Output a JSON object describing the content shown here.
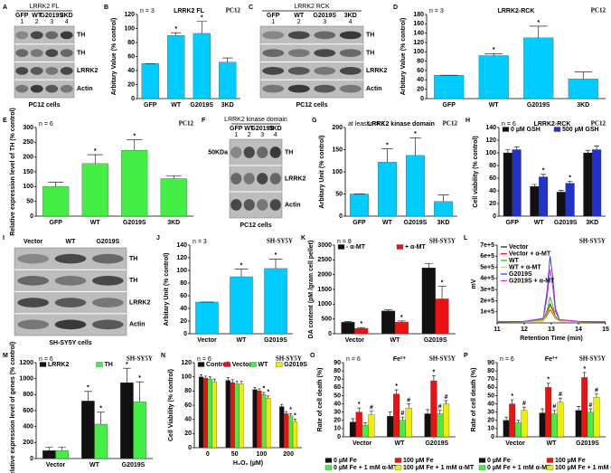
{
  "panels": [
    {
      "letter": "A",
      "blot": {
        "title": "LRRK2 FL",
        "lanes": [
          "GFP",
          "WT",
          "G2019S",
          "3KD"
        ],
        "lane_numbers": [
          "1",
          "2",
          "3",
          "4"
        ],
        "rows": [
          "TH",
          "TH",
          "LRRK2",
          "Actin"
        ],
        "caption": "PC12 cells"
      }
    },
    {
      "letter": "B",
      "chart_data": {
        "type": "bar",
        "title": "LRRK2 FL",
        "n_label": "n = 3",
        "cell_line": "PC12",
        "y_label": "Arbitary Value (% control)",
        "categories": [
          "GFP",
          "WT",
          "G2019S",
          "3KD"
        ],
        "series": [
          {
            "color": "#00ccff",
            "values": [
              50,
              90,
              93,
              52
            ],
            "errors": [
              0,
              4,
              17,
              6
            ],
            "marks": [
              null,
              "*",
              "*",
              null
            ]
          }
        ],
        "ylim": [
          0,
          120
        ],
        "yticks": [
          0,
          20,
          40,
          60,
          80,
          100,
          120
        ]
      }
    },
    {
      "letter": "C",
      "blot": {
        "title": "LRRK2 RCK",
        "lanes": [
          "GFP",
          "WT",
          "G2019S",
          "3KD"
        ],
        "lane_numbers": [
          "1",
          "2",
          "3",
          "4"
        ],
        "rows": [
          "TH",
          "TH",
          "LRRK2",
          "Actin"
        ],
        "caption": "PC12 cells"
      }
    },
    {
      "letter": "D",
      "chart_data": {
        "type": "bar",
        "title": "LRRK2-RCK",
        "n_label": "n = 3",
        "cell_line": "PC12",
        "y_label": "Arbitary Value (% control)",
        "categories": [
          "GFP",
          "WT",
          "G2019S",
          "3KD"
        ],
        "series": [
          {
            "color": "#00ccff",
            "values": [
              50,
              92,
              130,
              42
            ],
            "errors": [
              0,
              4,
              25,
              15
            ],
            "marks": [
              null,
              "*",
              "*",
              null
            ]
          }
        ],
        "ylim": [
          0,
          180
        ],
        "yticks": [
          0,
          20,
          40,
          60,
          80,
          100,
          120,
          140,
          160,
          180
        ]
      }
    },
    {
      "letter": "E",
      "chart_data": {
        "type": "bar",
        "n_label": "n = 6",
        "cell_line": "PC12",
        "y_label": "Relative expression level of TH (% control)",
        "categories": [
          "GFP",
          "WT",
          "G2019S",
          "3KD"
        ],
        "series": [
          {
            "color": "#44ee44",
            "values": [
              100,
              178,
              223,
              127
            ],
            "errors": [
              15,
              30,
              35,
              10
            ],
            "marks": [
              null,
              "*",
              "*",
              null
            ]
          }
        ],
        "ylim": [
          0,
          300
        ],
        "yticks": [
          0,
          50,
          100,
          150,
          200,
          250,
          300
        ]
      }
    },
    {
      "letter": "F",
      "blot": {
        "title": "LRRK2 kinase domain",
        "lanes": [
          "GFP",
          "WT",
          "G2019S",
          "3KD"
        ],
        "lane_numbers": [
          "1",
          "2",
          "3",
          "4"
        ],
        "rows": [
          "TH",
          "LRRK2",
          "Actin"
        ],
        "marker": "50KDa",
        "caption": "PC12 cells"
      }
    },
    {
      "letter": "G",
      "chart_data": {
        "type": "bar",
        "title": "LRRK2 kinase domain",
        "n_label": "at least n = 3",
        "cell_line": "PC12",
        "y_label": "Arbitary Unit (% control)",
        "categories": [
          "GFP",
          "WT",
          "G2019S",
          "3KD"
        ],
        "series": [
          {
            "color": "#00ccff",
            "values": [
              50,
              122,
              137,
              33
            ],
            "errors": [
              0,
              30,
              40,
              15
            ],
            "marks": [
              null,
              "*",
              "*",
              null
            ]
          }
        ],
        "ylim": [
          0,
          200
        ],
        "yticks": [
          0,
          50,
          100,
          150,
          200
        ]
      }
    },
    {
      "letter": "H",
      "chart_data": {
        "type": "bar",
        "title": "LRRK2-RCK",
        "n_label": "n = 6",
        "cell_line": "PC12",
        "y_label": "Cell viability (% control)",
        "categories": [
          "GFP",
          "WT",
          "G2019S",
          "3KD"
        ],
        "legend": "top",
        "series": [
          {
            "name": "0 µM GSH",
            "color": "#111111",
            "values": [
              100,
              47,
              38,
              100
            ],
            "errors": [
              5,
              3,
              3,
              4
            ],
            "marks": [
              null,
              null,
              null,
              null
            ]
          },
          {
            "name": "500 µM GSH",
            "color": "#2233cc",
            "values": [
              105,
              62,
              52,
              105
            ],
            "errors": [
              4,
              4,
              3,
              6
            ],
            "marks": [
              null,
              "*",
              "*",
              null
            ]
          }
        ],
        "ylim": [
          0,
          140
        ],
        "yticks": [
          0,
          20,
          40,
          60,
          80,
          100,
          120,
          140
        ]
      }
    },
    {
      "letter": "I",
      "blot": {
        "lanes": [
          "Vector",
          "WT",
          "G2019S"
        ],
        "rows": [
          "TH",
          "TH",
          "LRRK2",
          "Actin"
        ],
        "caption": "SH-SY5Y cells"
      }
    },
    {
      "letter": "J",
      "chart_data": {
        "type": "bar",
        "n_label": "n = 3",
        "cell_line": "SH-SY5Y",
        "y_label": "Arbitary Unit (% control)",
        "categories": [
          "Vector",
          "WT",
          "G2019S"
        ],
        "series": [
          {
            "color": "#00ccff",
            "values": [
              50,
              90,
              103
            ],
            "errors": [
              0,
              12,
              15
            ],
            "marks": [
              null,
              "*",
              "*"
            ]
          }
        ],
        "ylim": [
          0,
          140
        ],
        "yticks": [
          0,
          20,
          40,
          60,
          80,
          100,
          120,
          140
        ]
      }
    },
    {
      "letter": "K",
      "chart_data": {
        "type": "bar",
        "n_label": "n = 8",
        "cell_line": "SH-SY5Y",
        "y_label": "DA content (pM /gram cell pellet)",
        "categories": [
          "Vector",
          "WT",
          "G2019S"
        ],
        "legend": "top",
        "series": [
          {
            "name": "- α-MT",
            "color": "#111111",
            "values": [
              390,
              770,
              2230
            ],
            "errors": [
              30,
              40,
              150
            ],
            "marks": [
              null,
              null,
              null
            ]
          },
          {
            "name": "+ α-MT",
            "color": "#ee1111",
            "values": [
              180,
              390,
              1180
            ],
            "errors": [
              30,
              40,
              420
            ],
            "marks": [
              "*",
              "*",
              "*"
            ]
          }
        ],
        "ylim": [
          0,
          3000
        ],
        "yticks": [
          0,
          500,
          1000,
          1500,
          2000,
          2500,
          3000
        ]
      }
    },
    {
      "letter": "L",
      "chart_data": {
        "type": "line",
        "cell_line": "SH-SY5Y",
        "y_label": "mV",
        "x_label": "Retention Time (min)",
        "legend": "top-left",
        "x": [
          11,
          12,
          12.7,
          12.85,
          12.95,
          13.05,
          13.15,
          13.3,
          14,
          15
        ],
        "xlim": [
          11,
          15
        ],
        "xticks": [
          11,
          12,
          13,
          14,
          15
        ],
        "ylim": [
          0,
          700000
        ],
        "yticks": [
          {
            "value": 100000,
            "label": "1e+5"
          },
          {
            "value": 200000,
            "label": "2e+5"
          },
          {
            "value": 300000,
            "label": "3e+5"
          },
          {
            "value": 400000,
            "label": "4e+5"
          },
          {
            "value": 500000,
            "label": "5e+5"
          },
          {
            "value": 600000,
            "label": "6e+5"
          },
          {
            "value": 700000,
            "label": "7e+5"
          }
        ],
        "series": [
          {
            "name": "Vector",
            "color": "#111111",
            "values": [
              10000,
              12000,
              20000,
              90000,
              170000,
              120000,
              50000,
              20000,
              12000,
              10000
            ]
          },
          {
            "name": "Vector + α-MT",
            "color": "#ee1111",
            "values": [
              10000,
              11000,
              18000,
              70000,
              120000,
              85000,
              40000,
              18000,
              11000,
              10000
            ]
          },
          {
            "name": "WT",
            "color": "#22bb22",
            "values": [
              10000,
              12000,
              25000,
              120000,
              230000,
              160000,
              60000,
              22000,
              12000,
              10000
            ]
          },
          {
            "name": "WT + α-MT",
            "color": "#dddd00",
            "values": [
              10000,
              11000,
              20000,
              80000,
              150000,
              105000,
              45000,
              20000,
              11000,
              10000
            ]
          },
          {
            "name": "G2019S",
            "color": "#2233ee",
            "values": [
              10000,
              14000,
              40000,
              300000,
              600000,
              420000,
              130000,
              30000,
              14000,
              10000
            ]
          },
          {
            "name": "G2019S + α-MT",
            "color": "#dd22dd",
            "values": [
              10000,
              13000,
              35000,
              240000,
              480000,
              330000,
              100000,
              28000,
              13000,
              10000
            ]
          }
        ]
      }
    },
    {
      "letter": "M",
      "chart_data": {
        "type": "bar",
        "n_label": "n = 6",
        "cell_line": "SH-SY5Y",
        "y_label": "Relative expression level of genes (% control)",
        "categories": [
          "Vector",
          "WT",
          "G2019S"
        ],
        "legend": "top",
        "series": [
          {
            "name": "LRRK2",
            "color": "#111111",
            "values": [
              100,
              720,
              950
            ],
            "errors": [
              40,
              120,
              180
            ],
            "marks": [
              null,
              "*",
              "*"
            ]
          },
          {
            "name": "TH",
            "color": "#44ee44",
            "values": [
              100,
              430,
              710
            ],
            "errors": [
              40,
              150,
              250
            ],
            "marks": [
              null,
              "*",
              "*"
            ]
          }
        ],
        "ylim": [
          0,
          1200
        ],
        "yticks": [
          0,
          200,
          400,
          600,
          800,
          1000,
          1200
        ]
      }
    },
    {
      "letter": "N",
      "chart_data": {
        "type": "bar",
        "n_label": "n = 6",
        "cell_line": "SH-SY5Y",
        "y_label": "Cell Viability (% control)",
        "x_label": "H₂O₂ (µM)",
        "categories": [
          "0",
          "50",
          "100",
          "200"
        ],
        "legend": "top",
        "series": [
          {
            "name": "Control",
            "color": "#111111",
            "values": [
              100,
              95,
              82,
              58
            ],
            "errors": [
              3,
              4,
              3,
              3
            ],
            "marks": [
              null,
              null,
              null,
              null
            ]
          },
          {
            "name": "Vector",
            "color": "#ee1111",
            "values": [
              98,
              92,
              80,
              48
            ],
            "errors": [
              3,
              4,
              3,
              3
            ],
            "marks": [
              null,
              null,
              null,
              null
            ]
          },
          {
            "name": "WT",
            "color": "#44ee44",
            "values": [
              97,
              90,
              75,
              45
            ],
            "errors": [
              3,
              4,
              3,
              3
            ],
            "marks": [
              null,
              null,
              "*",
              "*"
            ]
          },
          {
            "name": "G2019S",
            "color": "#eeee00",
            "values": [
              93,
              90,
              70,
              37
            ],
            "errors": [
              4,
              4,
              3,
              3
            ],
            "marks": [
              null,
              null,
              "*",
              "*"
            ]
          }
        ],
        "ylim": [
          0,
          120
        ],
        "yticks": [
          0,
          20,
          40,
          60,
          80,
          100,
          120
        ]
      }
    },
    {
      "letter": "O",
      "chart_data": {
        "type": "bar",
        "title": "Fe²⁺",
        "n_label": "n = 6",
        "cell_line": "SH-SY5Y",
        "y_label": "Rate of cell death (%)",
        "categories": [
          "Vector",
          "WT",
          "G2019S"
        ],
        "legend": "bottom",
        "series": [
          {
            "name": "0 µM Fe",
            "color": "#111111",
            "values": [
              18,
              25,
              28
            ],
            "errors": [
              4,
              5,
              5
            ],
            "marks": [
              null,
              null,
              null
            ]
          },
          {
            "name": "100 µM Fe",
            "color": "#ee1111",
            "values": [
              30,
              52,
              68
            ],
            "errors": [
              5,
              5,
              6
            ],
            "marks": [
              "*",
              "*",
              "*"
            ]
          },
          {
            "name": "0 µM Fe + 1 mM α-MT",
            "color": "#44ee44",
            "values": [
              14,
              20,
              28
            ],
            "errors": [
              3,
              4,
              4
            ],
            "marks": [
              null,
              "#",
              "#"
            ]
          },
          {
            "name": "100 µM Fe + 1 mM α-MT",
            "color": "#eeee00",
            "values": [
              27,
              35,
              40
            ],
            "errors": [
              4,
              5,
              4
            ],
            "marks": [
              "#",
              "#",
              "#"
            ]
          }
        ],
        "ylim": [
          0,
          90
        ],
        "yticks": [
          0,
          10,
          20,
          30,
          40,
          50,
          60,
          70,
          80,
          90
        ]
      }
    },
    {
      "letter": "P",
      "chart_data": {
        "type": "bar",
        "title": "Fe³⁺",
        "n_label": "n = 6",
        "cell_line": "SH-SY5Y",
        "y_label": "Rate of cell death (%)",
        "categories": [
          "Vector",
          "WT",
          "G2019S"
        ],
        "legend": "bottom",
        "series": [
          {
            "name": "0 µM Fe",
            "color": "#111111",
            "values": [
              20,
              29,
              32
            ],
            "errors": [
              4,
              5,
              5
            ],
            "marks": [
              null,
              null,
              null
            ]
          },
          {
            "name": "100 µM Fe",
            "color": "#ee1111",
            "values": [
              40,
              60,
              72
            ],
            "errors": [
              5,
              5,
              6
            ],
            "marks": [
              "*",
              "*",
              "*"
            ]
          },
          {
            "name": "0 µM Fe + 1 mM α-MT",
            "color": "#44ee44",
            "values": [
              17,
              28,
              30
            ],
            "errors": [
              3,
              4,
              4
            ],
            "marks": [
              null,
              "#",
              "#"
            ]
          },
          {
            "name": "100 µM Fe + 1 mM α-MT",
            "color": "#eeee00",
            "values": [
              32,
              42,
              48
            ],
            "errors": [
              4,
              5,
              4
            ],
            "marks": [
              "#",
              "#",
              "#"
            ]
          }
        ],
        "ylim": [
          0,
          90
        ],
        "yticks": [
          0,
          10,
          20,
          30,
          40,
          50,
          60,
          70,
          80,
          90
        ]
      }
    }
  ]
}
